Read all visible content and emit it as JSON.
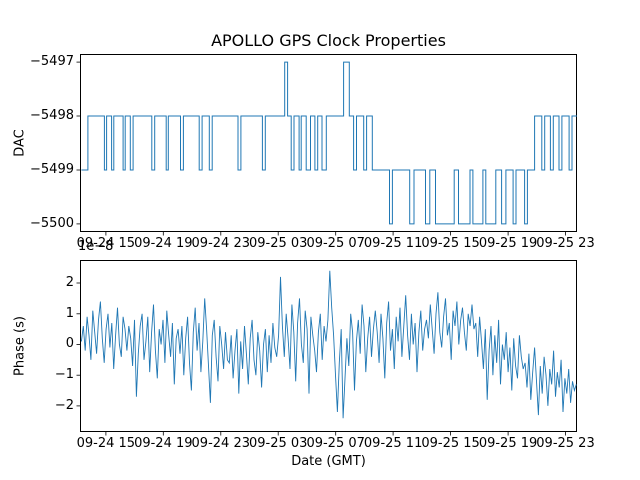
{
  "chart_data": [
    {
      "type": "line",
      "subtype": "step",
      "title": "APOLLO GPS Clock Properties",
      "ylabel": "DAC",
      "line_color": "#1f77b4",
      "xlim": [
        13.2,
        47.8
      ],
      "ylim": [
        -5500.15,
        -5496.85
      ],
      "yticks": [
        -5497,
        -5498,
        -5499,
        -5500
      ],
      "ytick_labels": [
        "−5497",
        "−5498",
        "−5499",
        "−5500"
      ],
      "xticks": [
        15,
        19,
        23,
        27,
        31,
        35,
        39,
        43,
        47
      ],
      "xtick_labels": [
        "09-24 15",
        "09-24 19",
        "09-24 23",
        "09-25 03",
        "09-25 07",
        "09-25 11",
        "09-25 15",
        "09-25 19",
        "09-25 23"
      ],
      "steps": [
        [
          13.3,
          -5499
        ],
        [
          13.75,
          -5498
        ],
        [
          14.9,
          -5499
        ],
        [
          15.05,
          -5498
        ],
        [
          15.4,
          -5499
        ],
        [
          15.55,
          -5498
        ],
        [
          16.2,
          -5499
        ],
        [
          16.35,
          -5498
        ],
        [
          16.7,
          -5499
        ],
        [
          16.9,
          -5498
        ],
        [
          18.2,
          -5499
        ],
        [
          18.4,
          -5498
        ],
        [
          19.2,
          -5499
        ],
        [
          19.35,
          -5498
        ],
        [
          20.2,
          -5499
        ],
        [
          20.4,
          -5498
        ],
        [
          21.5,
          -5499
        ],
        [
          21.7,
          -5498
        ],
        [
          22.2,
          -5499
        ],
        [
          22.4,
          -5498
        ],
        [
          24.2,
          -5499
        ],
        [
          24.4,
          -5498
        ],
        [
          25.9,
          -5499
        ],
        [
          26.1,
          -5498
        ],
        [
          27.45,
          -5497
        ],
        [
          27.65,
          -5498
        ],
        [
          27.9,
          -5499
        ],
        [
          28.1,
          -5498
        ],
        [
          28.45,
          -5499
        ],
        [
          28.6,
          -5498
        ],
        [
          28.95,
          -5499
        ],
        [
          29.25,
          -5498
        ],
        [
          29.55,
          -5499
        ],
        [
          29.75,
          -5498
        ],
        [
          30.05,
          -5499
        ],
        [
          30.35,
          -5498
        ],
        [
          31.55,
          -5497
        ],
        [
          31.95,
          -5498
        ],
        [
          32.25,
          -5499
        ],
        [
          32.45,
          -5498
        ],
        [
          32.95,
          -5499
        ],
        [
          33.15,
          -5498
        ],
        [
          33.55,
          -5499
        ],
        [
          34.75,
          -5500
        ],
        [
          34.95,
          -5499
        ],
        [
          36.15,
          -5500
        ],
        [
          36.45,
          -5499
        ],
        [
          37.25,
          -5500
        ],
        [
          37.55,
          -5499
        ],
        [
          37.95,
          -5500
        ],
        [
          39.25,
          -5499
        ],
        [
          39.55,
          -5500
        ],
        [
          40.35,
          -5499
        ],
        [
          40.55,
          -5500
        ],
        [
          41.25,
          -5499
        ],
        [
          41.45,
          -5500
        ],
        [
          42.15,
          -5499
        ],
        [
          42.55,
          -5500
        ],
        [
          42.85,
          -5499
        ],
        [
          43.35,
          -5500
        ],
        [
          43.55,
          -5499
        ],
        [
          44.15,
          -5500
        ],
        [
          44.35,
          -5499
        ],
        [
          44.85,
          -5498
        ],
        [
          45.35,
          -5499
        ],
        [
          45.55,
          -5498
        ],
        [
          45.95,
          -5499
        ],
        [
          46.15,
          -5498
        ],
        [
          46.55,
          -5499
        ],
        [
          46.75,
          -5498
        ],
        [
          47.25,
          -5499
        ],
        [
          47.45,
          -5498
        ]
      ]
    },
    {
      "type": "line",
      "ylabel": "Phase (s)",
      "xlabel": "Date (GMT)",
      "offset_text": "1e−8",
      "unit": "1e-8",
      "line_color": "#1f77b4",
      "xlim": [
        13.2,
        47.8
      ],
      "ylim": [
        -2.85,
        2.75
      ],
      "yticks": [
        2,
        1,
        0,
        -1,
        -2
      ],
      "ytick_labels": [
        "2",
        "1",
        "0",
        "−1",
        "−2"
      ],
      "xticks": [
        15,
        19,
        23,
        27,
        31,
        35,
        39,
        43,
        47
      ],
      "xtick_labels": [
        "09-24 15",
        "09-24 19",
        "09-24 23",
        "09-25 03",
        "09-25 07",
        "09-25 11",
        "09-25 15",
        "09-25 19",
        "09-25 23"
      ],
      "x_start": 13.3,
      "x_step": 0.132,
      "values": [
        0.1,
        0.6,
        -0.2,
        0.9,
        0.3,
        -0.5,
        1.1,
        0.4,
        -0.3,
        0.8,
        1.4,
        0.2,
        -0.6,
        0.5,
        1.0,
        -0.1,
        0.7,
        -0.8,
        0.3,
        1.2,
        0.0,
        -0.4,
        0.9,
        0.5,
        -0.2,
        0.6,
        0.2,
        -0.7,
        0.8,
        -1.7,
        -0.3,
        0.6,
        1.0,
        -0.5,
        0.1,
        0.9,
        -0.9,
        0.4,
        1.3,
        -0.2,
        -1.1,
        0.5,
        0.0,
        0.8,
        -0.6,
        1.1,
        0.3,
        -0.4,
        0.7,
        -1.3,
        0.2,
        0.5,
        -0.3,
        0.6,
        -1.0,
        0.2,
        0.9,
        -0.6,
        -1.5,
        0.4,
        1.2,
        -0.2,
        0.7,
        -0.9,
        0.1,
        1.5,
        0.5,
        -0.7,
        -1.9,
        0.3,
        0.8,
        -0.4,
        -1.2,
        0.6,
        0.0,
        -0.8,
        0.4,
        -0.5,
        -0.6,
        0.3,
        -1.1,
        -0.2,
        0.5,
        -1.6,
        0.1,
        -0.8,
        0.6,
        -0.3,
        -1.3,
        0.2,
        0.8,
        -0.5,
        -1.0,
        0.4,
        -0.2,
        -1.4,
        0.0,
        0.5,
        -0.9,
        0.3,
        -0.6,
        0.7,
        -0.1,
        -0.4,
        0.3,
        2.2,
        0.6,
        -0.4,
        1.0,
        0.2,
        -0.8,
        1.3,
        0.4,
        -1.2,
        0.7,
        1.5,
        0.0,
        -0.6,
        1.1,
        0.5,
        -1.6,
        0.9,
        0.3,
        -0.2,
        -0.9,
        0.4,
        1.0,
        -0.5,
        0.6,
        0.1,
        0.8,
        2.4,
        1.2,
        0.3,
        -1.0,
        -2.2,
        -0.6,
        0.5,
        -2.4,
        -1.1,
        0.2,
        -0.7,
        1.0,
        0.4,
        -1.5,
        0.1,
        0.8,
        -0.3,
        1.3,
        0.6,
        -0.9,
        0.2,
        0.9,
        -0.4,
        0.5,
        1.1,
        0.4,
        -0.6,
        1.0,
        0.2,
        -1.1,
        0.7,
        1.4,
        -0.2,
        0.5,
        -0.8,
        0.9,
        0.1,
        1.2,
        -0.4,
        0.6,
        1.6,
        0.3,
        -0.5,
        1.0,
        0.0,
        0.7,
        -0.9,
        0.4,
        1.1,
        -0.2,
        0.5,
        0.8,
        0.2,
        1.3,
        0.5,
        -0.3,
        1.0,
        1.7,
        0.4,
        -0.1,
        0.9,
        1.5,
        0.3,
        0.7,
        -0.5,
        1.1,
        0.6,
        1.4,
        0.0,
        0.8,
        1.2,
        0.4,
        -0.2,
        1.0,
        0.6,
        1.3,
        0.5,
        0.7,
        -0.4,
        0.9,
        0.1,
        -0.8,
        0.5,
        -1.8,
        -0.2,
        0.6,
        -1.0,
        0.3,
        -0.6,
        0.8,
        -1.3,
        0.0,
        -0.5,
        0.4,
        -0.9,
        -0.1,
        -1.5,
        0.2,
        -0.7,
        -1.1,
        0.3,
        -0.4,
        -0.8,
        -0.6,
        -1.4,
        -0.3,
        -1.8,
        -0.9,
        -0.1,
        -1.2,
        -2.3,
        -0.7,
        -1.6,
        -0.4,
        -1.0,
        -2.0,
        -0.8,
        -1.3,
        -0.2,
        -1.7,
        -0.9,
        -1.4,
        -0.5,
        -2.2,
        -1.1,
        -1.6,
        -0.8,
        -1.9,
        -1.2,
        -1.5,
        -1.3
      ]
    }
  ]
}
